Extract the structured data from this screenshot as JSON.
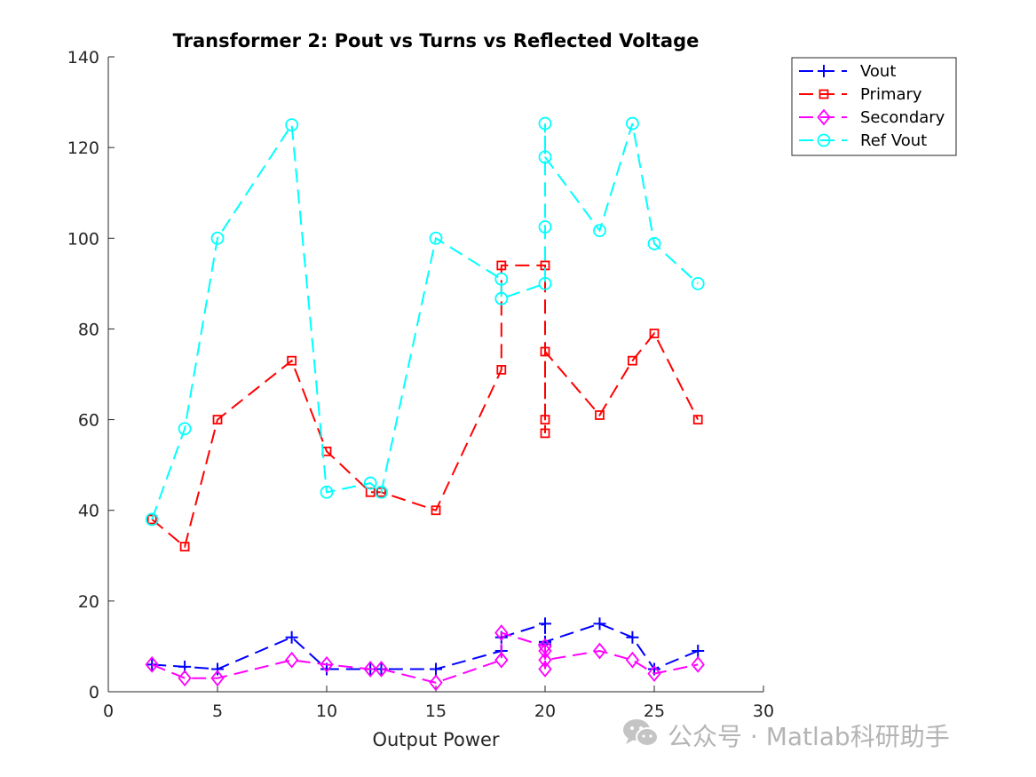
{
  "chart_data": {
    "type": "line",
    "title": "Transformer 2: Pout vs Turns vs Reflected Voltage",
    "xlabel": "Output Power",
    "ylabel": "",
    "xlim": [
      0,
      30
    ],
    "ylim": [
      0,
      140
    ],
    "xticks": [
      0,
      5,
      10,
      15,
      20,
      25,
      30
    ],
    "yticks": [
      0,
      20,
      40,
      60,
      80,
      100,
      120,
      140
    ],
    "grid": false,
    "legend_position": "top-right, outside plot area",
    "x": [
      2,
      3.5,
      5,
      8.4,
      10,
      12,
      12.5,
      15,
      18,
      18,
      20,
      20,
      20,
      20,
      22.5,
      24,
      25,
      27
    ],
    "series": [
      {
        "name": "Vout",
        "color": "#0000ff",
        "marker": "plus",
        "values": [
          6,
          5.5,
          5,
          12,
          5,
          5,
          5,
          5,
          9,
          12,
          15,
          11,
          10.5,
          11,
          15,
          12,
          5,
          9
        ]
      },
      {
        "name": "Primary",
        "color": "#ff0000",
        "marker": "square",
        "values": [
          38,
          32,
          60,
          73,
          53,
          44,
          44,
          40,
          71,
          94,
          94,
          57,
          60,
          75,
          61,
          73,
          79,
          60
        ]
      },
      {
        "name": "Secondary",
        "color": "#ff00ff",
        "marker": "diamond",
        "values": [
          6,
          3,
          3,
          7,
          6,
          5,
          5,
          2,
          7,
          13,
          10,
          5,
          9,
          7,
          9,
          7,
          4,
          6
        ]
      },
      {
        "name": "Ref Vout",
        "color": "#00ffff",
        "marker": "circle",
        "values": [
          38,
          58,
          100,
          125,
          44,
          46,
          44,
          100,
          91,
          86.7,
          90,
          102.5,
          125.3,
          117.9,
          101.7,
          125.3,
          98.8,
          90
        ]
      }
    ]
  },
  "watermark": {
    "text": "公众号 · Matlab科研助手",
    "icon": "wechat-icon"
  }
}
